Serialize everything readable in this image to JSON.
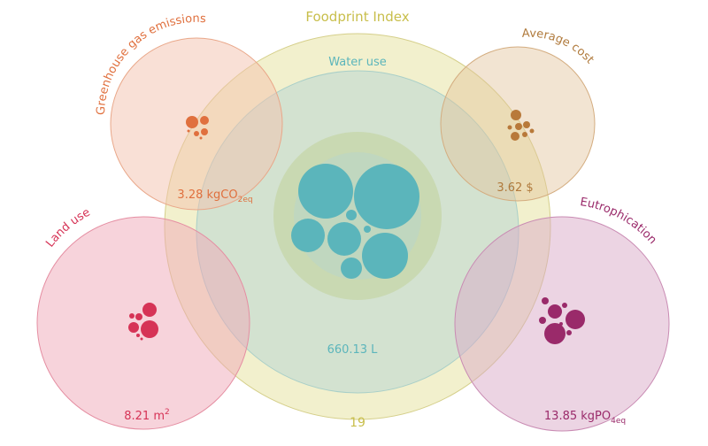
{
  "title": "Foodprint Index",
  "index_value": "19",
  "water": {
    "label": "Water use",
    "value": "660.13 L"
  },
  "ghg": {
    "label": "Greenhouse gas emissions",
    "value": "3.28 kgCO",
    "unit_sub": "2eq"
  },
  "cost": {
    "label": "Average cost",
    "value": "3.62 $"
  },
  "land": {
    "label": "Land use",
    "value": "8.21 m",
    "unit_sup": "2"
  },
  "eutro": {
    "label": "Eutrophication",
    "value": "13.85 kgPO",
    "unit_sub": "4eq"
  },
  "colors": {
    "index": "#c8be4a",
    "water": "#5bb5bb",
    "ghg": "#e0703e",
    "cost": "#b07a3c",
    "land": "#d63356",
    "eutro": "#9a2a6a"
  }
}
